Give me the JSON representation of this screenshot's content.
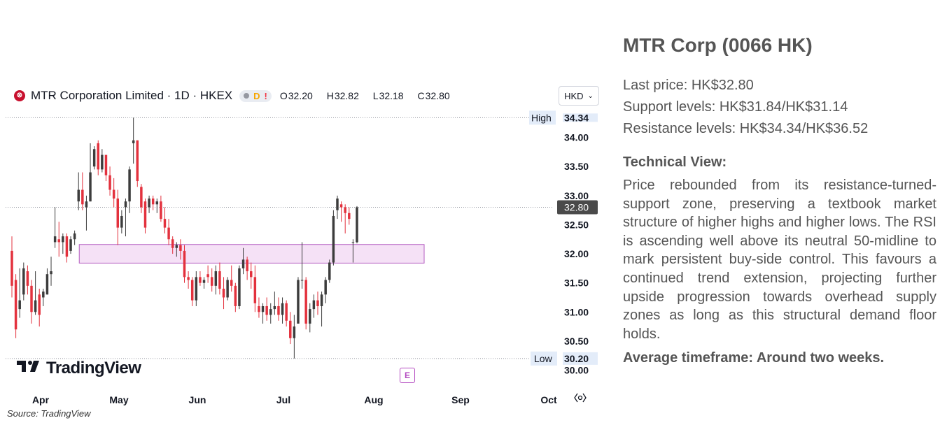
{
  "chart_data": {
    "type": "candlestick",
    "title": "MTR Corporation Limited · 1D · HKEX",
    "header": {
      "open_label": "O",
      "open": "32.20",
      "high_label": "H",
      "high": "32.82",
      "low_label": "L",
      "low": "32.18",
      "close_label": "C",
      "close": "32.80",
      "delayed_badge": "D",
      "alert_badge": "!"
    },
    "currency": "HKD",
    "x_tick_labels": [
      "Apr",
      "May",
      "Jun",
      "Jul",
      "Aug",
      "Sep",
      "Oct"
    ],
    "y_ticks": [
      30.0,
      30.5,
      31.0,
      31.5,
      32.0,
      32.5,
      33.0,
      33.5,
      34.0
    ],
    "ylim": [
      29.85,
      34.5
    ],
    "high_marker": {
      "label": "High",
      "value": 34.34
    },
    "low_marker": {
      "label": "Low",
      "value": 30.2
    },
    "last_price": {
      "value": 32.8
    },
    "zone": {
      "low": 31.84,
      "high": 32.16
    },
    "earnings_badge": "E",
    "candles": [
      {
        "o": 32.05,
        "h": 32.3,
        "l": 31.25,
        "c": 31.45
      },
      {
        "o": 31.55,
        "h": 31.65,
        "l": 30.55,
        "c": 30.7
      },
      {
        "o": 31.05,
        "h": 31.75,
        "l": 30.9,
        "c": 31.2
      },
      {
        "o": 31.3,
        "h": 31.85,
        "l": 31.2,
        "c": 31.75
      },
      {
        "o": 31.7,
        "h": 31.8,
        "l": 31.3,
        "c": 31.45
      },
      {
        "o": 31.45,
        "h": 31.55,
        "l": 30.8,
        "c": 31.0
      },
      {
        "o": 31.0,
        "h": 31.7,
        "l": 30.95,
        "c": 31.2
      },
      {
        "o": 31.3,
        "h": 31.4,
        "l": 30.75,
        "c": 30.95
      },
      {
        "o": 31.25,
        "h": 31.4,
        "l": 31.1,
        "c": 31.35
      },
      {
        "o": 31.3,
        "h": 31.75,
        "l": 31.3,
        "c": 31.65
      },
      {
        "o": 31.65,
        "h": 31.95,
        "l": 31.45,
        "c": 31.7
      },
      {
        "o": 32.2,
        "h": 32.8,
        "l": 32.1,
        "c": 32.3
      },
      {
        "o": 32.25,
        "h": 32.55,
        "l": 31.95,
        "c": 32.2
      },
      {
        "o": 32.2,
        "h": 32.35,
        "l": 32.0,
        "c": 32.3
      },
      {
        "o": 32.3,
        "h": 32.35,
        "l": 31.85,
        "c": 31.95
      },
      {
        "o": 32.05,
        "h": 32.3,
        "l": 32.0,
        "c": 32.25
      },
      {
        "o": 32.25,
        "h": 32.4,
        "l": 32.15,
        "c": 32.35
      },
      {
        "o": 32.9,
        "h": 33.4,
        "l": 32.75,
        "c": 33.1
      },
      {
        "o": 33.1,
        "h": 33.4,
        "l": 32.75,
        "c": 32.85
      },
      {
        "o": 32.8,
        "h": 33.0,
        "l": 32.4,
        "c": 32.9
      },
      {
        "o": 32.9,
        "h": 33.9,
        "l": 32.9,
        "c": 33.4
      },
      {
        "o": 33.5,
        "h": 33.85,
        "l": 33.45,
        "c": 33.8
      },
      {
        "o": 33.9,
        "h": 33.95,
        "l": 33.35,
        "c": 33.45
      },
      {
        "o": 33.45,
        "h": 33.8,
        "l": 33.4,
        "c": 33.7
      },
      {
        "o": 33.7,
        "h": 33.7,
        "l": 33.25,
        "c": 33.35
      },
      {
        "o": 33.35,
        "h": 33.5,
        "l": 33.0,
        "c": 33.1
      },
      {
        "o": 33.1,
        "h": 33.3,
        "l": 32.8,
        "c": 32.95
      },
      {
        "o": 32.95,
        "h": 33.1,
        "l": 32.15,
        "c": 32.45
      },
      {
        "o": 32.45,
        "h": 32.75,
        "l": 32.35,
        "c": 32.65
      },
      {
        "o": 32.8,
        "h": 32.95,
        "l": 32.3,
        "c": 32.9
      },
      {
        "o": 32.9,
        "h": 33.5,
        "l": 32.7,
        "c": 33.45
      },
      {
        "o": 33.9,
        "h": 34.34,
        "l": 33.55,
        "c": 33.95
      },
      {
        "o": 33.95,
        "h": 33.95,
        "l": 33.15,
        "c": 33.25
      },
      {
        "o": 33.15,
        "h": 33.2,
        "l": 32.7,
        "c": 32.8
      },
      {
        "o": 32.9,
        "h": 32.95,
        "l": 32.35,
        "c": 32.45
      },
      {
        "o": 32.8,
        "h": 33.0,
        "l": 32.7,
        "c": 32.95
      },
      {
        "o": 32.95,
        "h": 33.0,
        "l": 32.75,
        "c": 32.85
      },
      {
        "o": 32.85,
        "h": 32.95,
        "l": 32.7,
        "c": 32.9
      },
      {
        "o": 32.9,
        "h": 33.0,
        "l": 32.55,
        "c": 32.6
      },
      {
        "o": 32.6,
        "h": 32.8,
        "l": 32.35,
        "c": 32.45
      },
      {
        "o": 32.45,
        "h": 32.6,
        "l": 32.15,
        "c": 32.25
      },
      {
        "o": 32.25,
        "h": 32.3,
        "l": 32.0,
        "c": 32.1
      },
      {
        "o": 32.1,
        "h": 32.2,
        "l": 31.95,
        "c": 32.15
      },
      {
        "o": 32.15,
        "h": 32.25,
        "l": 31.9,
        "c": 32.05
      },
      {
        "o": 32.05,
        "h": 32.15,
        "l": 31.5,
        "c": 31.6
      },
      {
        "o": 31.6,
        "h": 31.7,
        "l": 31.4,
        "c": 31.55
      },
      {
        "o": 31.55,
        "h": 31.6,
        "l": 31.1,
        "c": 31.2
      },
      {
        "o": 31.2,
        "h": 31.7,
        "l": 31.1,
        "c": 31.6
      },
      {
        "o": 31.6,
        "h": 31.7,
        "l": 31.45,
        "c": 31.5
      },
      {
        "o": 31.5,
        "h": 31.6,
        "l": 31.4,
        "c": 31.55
      },
      {
        "o": 31.65,
        "h": 31.8,
        "l": 31.5,
        "c": 31.6
      },
      {
        "o": 31.6,
        "h": 31.75,
        "l": 31.35,
        "c": 31.45
      },
      {
        "o": 31.45,
        "h": 31.8,
        "l": 31.3,
        "c": 31.7
      },
      {
        "o": 31.7,
        "h": 31.85,
        "l": 31.3,
        "c": 31.4
      },
      {
        "o": 31.4,
        "h": 31.6,
        "l": 31.05,
        "c": 31.25
      },
      {
        "o": 31.25,
        "h": 31.6,
        "l": 31.2,
        "c": 31.55
      },
      {
        "o": 31.55,
        "h": 31.8,
        "l": 31.35,
        "c": 31.45
      },
      {
        "o": 31.45,
        "h": 31.5,
        "l": 31.0,
        "c": 31.1
      },
      {
        "o": 31.1,
        "h": 31.8,
        "l": 31.05,
        "c": 31.75
      },
      {
        "o": 31.75,
        "h": 32.1,
        "l": 31.65,
        "c": 31.9
      },
      {
        "o": 31.9,
        "h": 31.95,
        "l": 31.55,
        "c": 31.7
      },
      {
        "o": 31.7,
        "h": 31.85,
        "l": 31.4,
        "c": 31.6
      },
      {
        "o": 31.6,
        "h": 31.8,
        "l": 31.0,
        "c": 31.15
      },
      {
        "o": 31.1,
        "h": 31.25,
        "l": 30.9,
        "c": 31.0
      },
      {
        "o": 31.0,
        "h": 31.15,
        "l": 30.8,
        "c": 31.1
      },
      {
        "o": 31.1,
        "h": 31.25,
        "l": 30.85,
        "c": 30.95
      },
      {
        "o": 30.95,
        "h": 31.15,
        "l": 30.8,
        "c": 31.05
      },
      {
        "o": 31.05,
        "h": 31.35,
        "l": 30.95,
        "c": 31.1
      },
      {
        "o": 31.1,
        "h": 31.25,
        "l": 30.85,
        "c": 30.95
      },
      {
        "o": 30.95,
        "h": 31.25,
        "l": 30.8,
        "c": 31.15
      },
      {
        "o": 31.15,
        "h": 31.2,
        "l": 30.75,
        "c": 30.85
      },
      {
        "o": 30.85,
        "h": 31.0,
        "l": 30.45,
        "c": 30.55
      },
      {
        "o": 30.55,
        "h": 30.95,
        "l": 30.2,
        "c": 30.75
      },
      {
        "o": 30.8,
        "h": 31.6,
        "l": 30.8,
        "c": 31.55
      },
      {
        "o": 31.55,
        "h": 32.2,
        "l": 31.4,
        "c": 31.55
      },
      {
        "o": 31.55,
        "h": 31.6,
        "l": 30.7,
        "c": 30.8
      },
      {
        "o": 30.8,
        "h": 31.15,
        "l": 30.65,
        "c": 31.05
      },
      {
        "o": 31.05,
        "h": 31.3,
        "l": 30.9,
        "c": 31.2
      },
      {
        "o": 31.2,
        "h": 31.35,
        "l": 30.95,
        "c": 31.1
      },
      {
        "o": 31.1,
        "h": 31.35,
        "l": 30.75,
        "c": 31.3
      },
      {
        "o": 31.3,
        "h": 31.6,
        "l": 31.15,
        "c": 31.55
      },
      {
        "o": 31.55,
        "h": 31.9,
        "l": 31.5,
        "c": 31.85
      },
      {
        "o": 31.85,
        "h": 32.75,
        "l": 31.8,
        "c": 32.65
      },
      {
        "o": 32.75,
        "h": 33.0,
        "l": 32.6,
        "c": 32.95
      },
      {
        "o": 32.85,
        "h": 32.9,
        "l": 32.55,
        "c": 32.8
      },
      {
        "o": 32.8,
        "h": 32.85,
        "l": 32.35,
        "c": 32.7
      },
      {
        "o": 32.7,
        "h": 32.8,
        "l": 32.5,
        "c": 32.6
      },
      {
        "o": 32.2,
        "h": 32.25,
        "l": 31.85,
        "c": 32.2
      },
      {
        "o": 32.2,
        "h": 32.82,
        "l": 32.18,
        "c": 32.8
      }
    ]
  },
  "watermark": {
    "brand": "TradingView"
  },
  "source_note": "Source: TradingView",
  "panel": {
    "title": "MTR Corp (0066 HK)",
    "last_price": "Last price: HK$32.80",
    "support": "Support levels: HK$31.84/HK$31.14",
    "resistance": "Resistance levels: HK$34.34/HK$36.52",
    "technical_heading": "Technical View:",
    "technical_text": "Price rebounded from its resistance-turned-support zone, preserving a textbook market structure of higher highs and higher lows. The RSI is ascending well above its neutral 50-midline to mark persistent buy-side control. This favours a continued trend extension, projecting further upside progression towards overhead supply zones as long as this structural demand floor holds.",
    "timeframe": "Average timeframe: Around two weeks."
  },
  "colors": {
    "up": "#3c3c3c",
    "down": "#e3313d",
    "zone_fill": "#f3dcf5",
    "zone_stroke": "#b45cc0",
    "text": "#555555"
  }
}
